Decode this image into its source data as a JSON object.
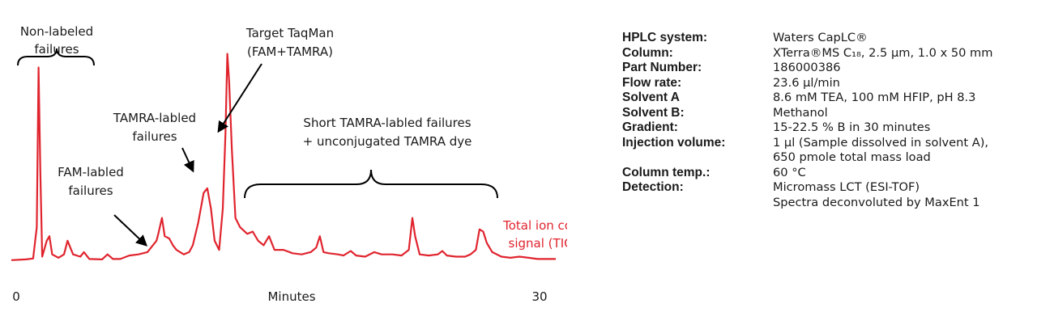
{
  "chart_data": {
    "type": "line",
    "xlabel": "Minutes",
    "xlim": [
      0,
      30
    ],
    "x_ticks": [
      "0",
      "30"
    ],
    "ylim": [
      0,
      100
    ],
    "series": [
      {
        "name": "Total ion count signal (TIC)",
        "color": "#e0242e",
        "points": [
          [
            0,
            1.5
          ],
          [
            0.8,
            1.8
          ],
          [
            1.2,
            2.2
          ],
          [
            1.4,
            16
          ],
          [
            1.5,
            86
          ],
          [
            1.6,
            40
          ],
          [
            1.7,
            3
          ],
          [
            1.95,
            10
          ],
          [
            2.1,
            12
          ],
          [
            2.25,
            4
          ],
          [
            2.6,
            2.5
          ],
          [
            2.9,
            4
          ],
          [
            3.1,
            10
          ],
          [
            3.4,
            4
          ],
          [
            3.8,
            3
          ],
          [
            4.0,
            5
          ],
          [
            4.3,
            2
          ],
          [
            5.0,
            1.8
          ],
          [
            5.3,
            4
          ],
          [
            5.6,
            2
          ],
          [
            6.0,
            2
          ],
          [
            6.5,
            3.5
          ],
          [
            7.0,
            4
          ],
          [
            7.5,
            5
          ],
          [
            7.8,
            8
          ],
          [
            8.0,
            10
          ],
          [
            8.1,
            13
          ],
          [
            8.3,
            20
          ],
          [
            8.45,
            12
          ],
          [
            8.7,
            11
          ],
          [
            8.9,
            8
          ],
          [
            9.1,
            6
          ],
          [
            9.3,
            5
          ],
          [
            9.5,
            4
          ],
          [
            9.8,
            5
          ],
          [
            10.0,
            8
          ],
          [
            10.3,
            18
          ],
          [
            10.6,
            31
          ],
          [
            10.8,
            33
          ],
          [
            11.0,
            24
          ],
          [
            11.2,
            10
          ],
          [
            11.45,
            6
          ],
          [
            11.65,
            24
          ],
          [
            11.8,
            57
          ],
          [
            11.9,
            92
          ],
          [
            12.0,
            80
          ],
          [
            12.15,
            50
          ],
          [
            12.35,
            20
          ],
          [
            12.6,
            16
          ],
          [
            13.0,
            13
          ],
          [
            13.3,
            14
          ],
          [
            13.6,
            10
          ],
          [
            13.9,
            8
          ],
          [
            14.2,
            12
          ],
          [
            14.5,
            6
          ],
          [
            15.0,
            6
          ],
          [
            15.5,
            4.5
          ],
          [
            16.0,
            4
          ],
          [
            16.5,
            5
          ],
          [
            16.8,
            7
          ],
          [
            17.0,
            12
          ],
          [
            17.2,
            5
          ],
          [
            17.5,
            4.5
          ],
          [
            18.0,
            4
          ],
          [
            18.3,
            3.5
          ],
          [
            18.7,
            5.5
          ],
          [
            19.0,
            3.5
          ],
          [
            19.5,
            3
          ],
          [
            20.0,
            5
          ],
          [
            20.4,
            4
          ],
          [
            21.0,
            4
          ],
          [
            21.5,
            3.5
          ],
          [
            21.9,
            6
          ],
          [
            22.1,
            20
          ],
          [
            22.25,
            12
          ],
          [
            22.5,
            4
          ],
          [
            23.0,
            3.5
          ],
          [
            23.5,
            4
          ],
          [
            23.75,
            5.5
          ],
          [
            24.0,
            3.5
          ],
          [
            24.5,
            3
          ],
          [
            25.0,
            3
          ],
          [
            25.3,
            4
          ],
          [
            25.6,
            6
          ],
          [
            25.8,
            15
          ],
          [
            26.0,
            14
          ],
          [
            26.2,
            9
          ],
          [
            26.5,
            5
          ],
          [
            27.0,
            3
          ],
          [
            27.5,
            2.5
          ],
          [
            28.0,
            3
          ],
          [
            28.5,
            2.5
          ],
          [
            29.0,
            2
          ],
          [
            30.0,
            2
          ]
        ]
      }
    ],
    "legend": "right",
    "grid": false
  },
  "labels": {
    "non_labeled": [
      "Non-labeled",
      "failures"
    ],
    "fam": [
      "FAM-labled",
      "failures"
    ],
    "tamra": [
      "TAMRA-labled",
      "failures"
    ],
    "target": [
      "Target TaqMan",
      "(FAM+TAMRA)"
    ],
    "short": [
      "Short TAMRA-labled failures",
      "+ unconjugated TAMRA dye"
    ],
    "tic": [
      "Total ion count",
      "signal (TIC)"
    ]
  },
  "conditions": [
    {
      "key": "HPLC system:",
      "value": [
        "Waters CapLC®"
      ]
    },
    {
      "key": "Column:",
      "value": [
        "XTerra®MS C₁₈, 2.5 µm, 1.0 x 50 mm"
      ]
    },
    {
      "key": "Part Number:",
      "value": [
        "186000386"
      ]
    },
    {
      "key": "Flow rate:",
      "value": [
        "23.6 µl/min"
      ]
    },
    {
      "key": "Solvent A",
      "value": [
        "8.6 mM TEA, 100 mM HFIP, pH 8.3"
      ]
    },
    {
      "key": "Solvent B:",
      "value": [
        "Methanol"
      ]
    },
    {
      "key": "Gradient:",
      "value": [
        "15-22.5 % B in 30 minutes"
      ]
    },
    {
      "key": "Injection volume:",
      "value": [
        "1 µl (Sample dissolved in solvent A),",
        "650 pmole total mass load"
      ]
    },
    {
      "key": "Column temp.:",
      "value": [
        "60 °C"
      ]
    },
    {
      "key": "Detection:",
      "value": [
        "Micromass LCT (ESI-TOF)",
        "Spectra deconvoluted by MaxEnt 1"
      ]
    }
  ]
}
